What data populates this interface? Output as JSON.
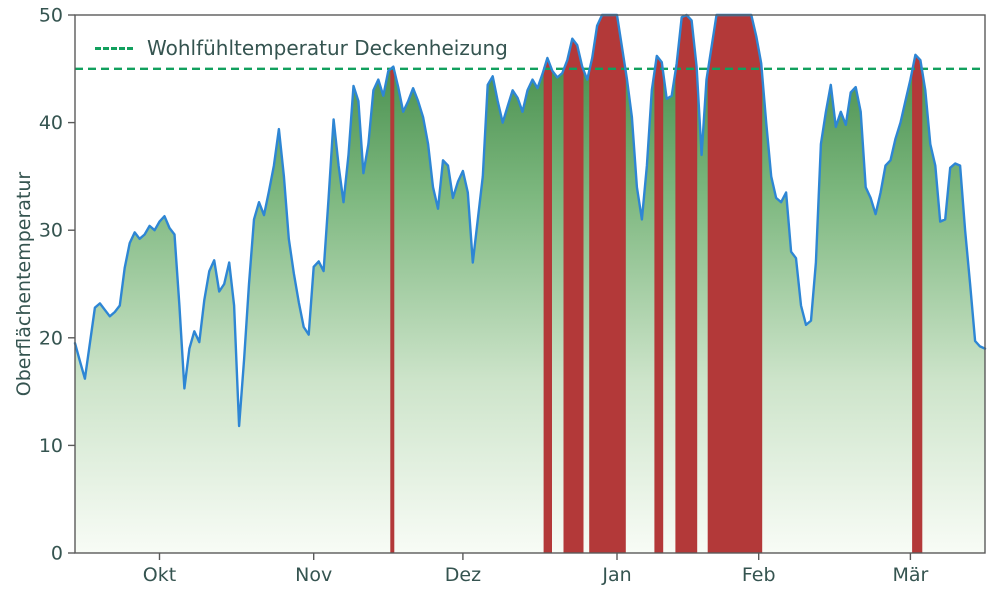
{
  "chart_data": {
    "type": "area-line",
    "ylabel": "Oberflächentemperatur",
    "xlabel": "",
    "ylim": [
      0,
      50
    ],
    "yticks": [
      0,
      10,
      20,
      30,
      40,
      50
    ],
    "xlim": [
      0,
      183
    ],
    "xticks": [
      {
        "pos": 17,
        "label": "Okt"
      },
      {
        "pos": 48,
        "label": "Nov"
      },
      {
        "pos": 78,
        "label": "Dez"
      },
      {
        "pos": 109,
        "label": "Jan"
      },
      {
        "pos": 137.5,
        "label": "Feb"
      },
      {
        "pos": 168,
        "label": "Mär"
      }
    ],
    "threshold": {
      "value": 45,
      "label": "Wohlfühltemperatur Deckenheizung",
      "style": "dashed"
    },
    "series": [
      {
        "name": "Oberflächentemperatur",
        "values": [
          19.5,
          17.8,
          16.2,
          19.5,
          22.8,
          23.2,
          22.6,
          22.0,
          22.4,
          23.0,
          26.5,
          28.8,
          29.8,
          29.2,
          29.6,
          30.4,
          30.0,
          30.8,
          31.3,
          30.2,
          29.6,
          23.0,
          15.3,
          19.0,
          20.6,
          19.6,
          23.5,
          26.2,
          27.2,
          24.3,
          25.0,
          27.0,
          23.0,
          11.8,
          18.0,
          25.0,
          31.0,
          32.6,
          31.4,
          33.6,
          36.0,
          39.4,
          35.0,
          29.2,
          26.0,
          23.3,
          21.0,
          20.3,
          26.6,
          27.1,
          26.2,
          33.0,
          40.3,
          36.0,
          32.6,
          37.0,
          43.4,
          42.0,
          35.3,
          38.0,
          43.0,
          44.0,
          42.5,
          44.8,
          45.2,
          43.3,
          41.0,
          42.0,
          43.2,
          42.0,
          40.5,
          38.0,
          34.0,
          32.0,
          36.5,
          36.0,
          33.0,
          34.5,
          35.5,
          33.5,
          27.0,
          31.0,
          35.0,
          43.5,
          44.3,
          42.0,
          40.0,
          41.5,
          43.0,
          42.3,
          41.0,
          43.0,
          44.0,
          43.2,
          44.5,
          46.0,
          44.8,
          44.2,
          44.6,
          45.8,
          47.8,
          47.2,
          45.2,
          44.0,
          46.0,
          49.0,
          52.0,
          53.0,
          52.0,
          50.5,
          47.0,
          44.0,
          40.5,
          34.0,
          31.0,
          36.0,
          43.0,
          46.2,
          45.6,
          42.2,
          42.5,
          45.5,
          49.8,
          50.0,
          49.5,
          45.2,
          37.0,
          44.0,
          47.0,
          51.0,
          54.0,
          55.0,
          54.5,
          53.0,
          54.0,
          52.0,
          50.0,
          48.0,
          45.5,
          40.0,
          35.0,
          33.0,
          32.6,
          33.5,
          28.0,
          27.4,
          23.0,
          21.2,
          21.6,
          27.0,
          38.0,
          41.0,
          43.5,
          39.6,
          41.0,
          39.8,
          42.8,
          43.3,
          41.0,
          34.0,
          33.0,
          31.5,
          33.5,
          36.0,
          36.5,
          38.5,
          40.0,
          42.0,
          44.0,
          46.3,
          45.8,
          43.0,
          38.0,
          36.0,
          30.8,
          31.0,
          35.8,
          36.2,
          36.0,
          30.0,
          25.0,
          19.7,
          19.2,
          19.0
        ]
      }
    ],
    "colors": {
      "line": "#2e86d4",
      "threshold": "#12a05e",
      "exceedance": "#b33939",
      "area_top": "#38823e",
      "area_mid": "#7cb77e",
      "area_low": "#cde4ca",
      "area_bottom": "#f8fcf6",
      "text": "#355450",
      "spine": "#5a5a5a"
    },
    "grid": false,
    "legend_position": "upper-left"
  }
}
